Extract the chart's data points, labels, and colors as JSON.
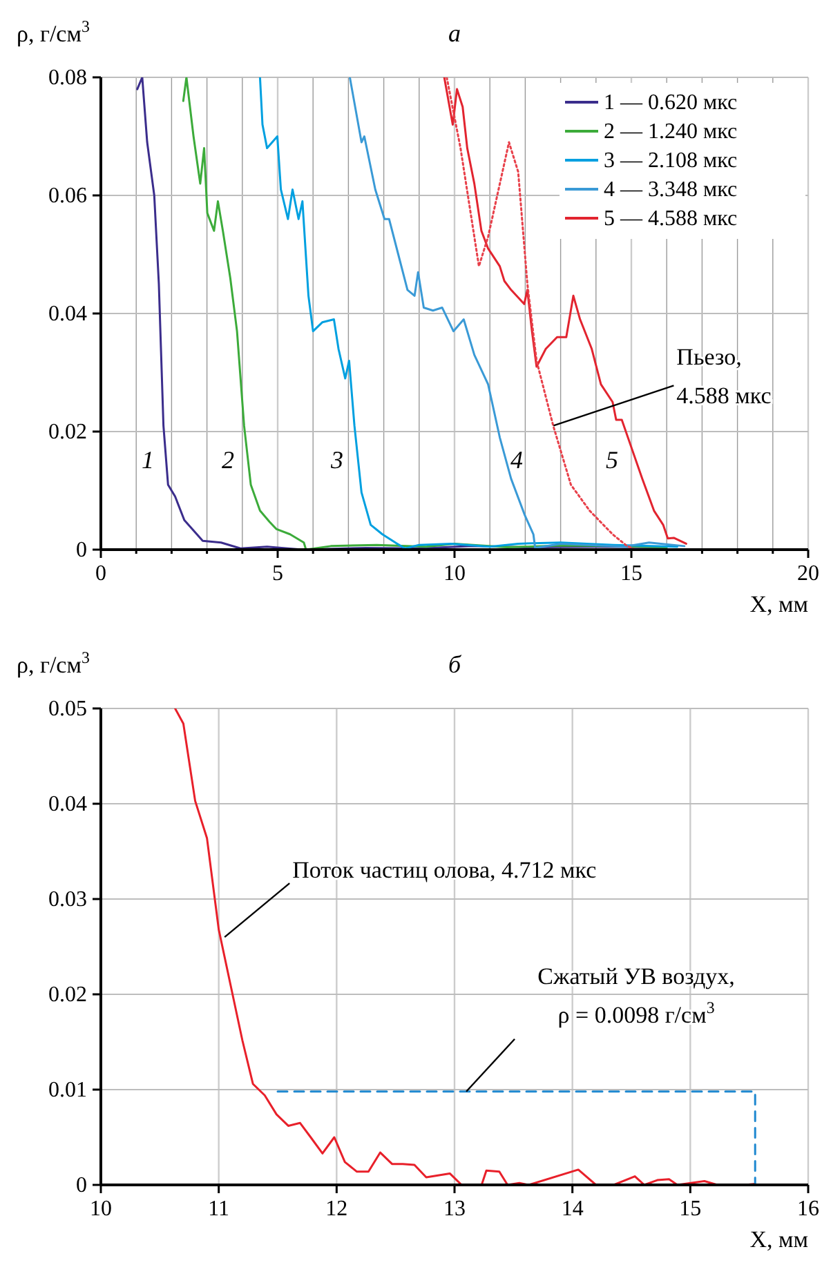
{
  "chart_data": [
    {
      "type": "line",
      "title": "а",
      "xlabel": "X, мм",
      "ylabel": "ρ, г/см$^{3}$",
      "xlim": [
        0,
        20
      ],
      "ylim": [
        0,
        0.08
      ],
      "xticks": [
        0,
        {
          "value": 1,
          "label": null
        },
        {
          "value": 2,
          "label": null
        },
        {
          "value": 3,
          "label": null
        },
        {
          "value": 4,
          "label": null
        },
        5,
        {
          "value": 6,
          "label": null
        },
        {
          "value": 7,
          "label": null
        },
        {
          "value": 8,
          "label": null
        },
        {
          "value": 9,
          "label": null
        },
        10,
        {
          "value": 11,
          "label": null
        },
        {
          "value": 12,
          "label": null
        },
        {
          "value": 13,
          "label": null
        },
        {
          "value": 14,
          "label": null
        },
        15,
        {
          "value": 16,
          "label": null
        },
        {
          "value": 17,
          "label": null
        },
        {
          "value": 18,
          "label": null
        },
        {
          "value": 19,
          "label": null
        },
        20
      ],
      "yticks": [
        0,
        0.02,
        0.04,
        0.06,
        0.08
      ],
      "grid": true,
      "legend": "top right",
      "series": [
        {
          "name": "1 — 0.620 мкс",
          "color": "#3b2d8c",
          "x": [
            1.03,
            1.17,
            1.31,
            1.51,
            1.64,
            1.77,
            1.9,
            2.1,
            2.36,
            2.88,
            3.4,
            3.95,
            4.7,
            5.7,
            7.5,
            9,
            10.5,
            12,
            14,
            16
          ],
          "values": [
            0.078,
            0.08,
            0.069,
            0.06,
            0.045,
            0.021,
            0.011,
            0.009,
            0.005,
            0.0015,
            0.0012,
            0.0002,
            0.0005,
            0,
            0.0003,
            0.0002,
            0.0006,
            0.0004,
            0.0005,
            0.0004
          ]
        },
        {
          "name": "2 — 1.240 мкс",
          "color": "#3cab3a",
          "x": [
            2.33,
            2.42,
            2.62,
            2.81,
            2.92,
            3.01,
            3.2,
            3.31,
            3.45,
            3.66,
            3.85,
            4.05,
            4.24,
            4.5,
            4.77,
            4.96,
            5.35,
            5.74,
            5.8,
            6.5,
            7.8,
            9.2,
            10,
            11.5,
            13,
            14.5,
            16
          ],
          "values": [
            0.076,
            0.08,
            0.07,
            0.062,
            0.068,
            0.057,
            0.054,
            0.059,
            0.054,
            0.046,
            0.037,
            0.021,
            0.011,
            0.0066,
            0.0047,
            0.0035,
            0.0026,
            0.0012,
            0,
            0.0006,
            0.0008,
            0.0005,
            0.001,
            0.0004,
            0.0007,
            0.0006,
            0.0004
          ]
        },
        {
          "name": "3 — 2.108 мкс",
          "color": "#00a0e0",
          "x": [
            4.5,
            4.57,
            4.7,
            4.99,
            5.09,
            5.29,
            5.42,
            5.59,
            5.7,
            5.87,
            6,
            6.26,
            6.59,
            6.72,
            6.91,
            7.02,
            7.17,
            7.37,
            7.63,
            7.96,
            8.35,
            8.6,
            9,
            9.9,
            11,
            11.8,
            13,
            14.5,
            16.3
          ],
          "values": [
            0.08,
            0.072,
            0.068,
            0.07,
            0.061,
            0.056,
            0.061,
            0.056,
            0.059,
            0.043,
            0.037,
            0.0385,
            0.039,
            0.034,
            0.029,
            0.032,
            0.021,
            0.0097,
            0.0042,
            0.0026,
            0.0011,
            0.0002,
            0.0008,
            0.001,
            0.0005,
            0.001,
            0.0012,
            0.0008,
            0.0005
          ]
        },
        {
          "name": "4 — 3.348 мкс",
          "color": "#3a9ad6",
          "x": [
            7.04,
            7.37,
            7.45,
            7.76,
            8.02,
            8.15,
            8.41,
            8.67,
            8.87,
            8.97,
            9.13,
            9.39,
            9.65,
            9.97,
            10.26,
            10.56,
            10.95,
            11.28,
            11.6,
            11.99,
            12.23,
            12.28,
            13,
            13.8,
            14.8,
            15.5,
            16.5
          ],
          "values": [
            0.08,
            0.069,
            0.07,
            0.061,
            0.056,
            0.056,
            0.05,
            0.044,
            0.043,
            0.047,
            0.041,
            0.0405,
            0.041,
            0.037,
            0.039,
            0.033,
            0.028,
            0.019,
            0.012,
            0.0058,
            0.0026,
            0.0003,
            0.001,
            0.0008,
            0.0005,
            0.0012,
            0.0006
          ]
        },
        {
          "name": "5 — 4.588 мкс",
          "color": "#e2242f",
          "x": [
            9.71,
            9.95,
            10.07,
            10.23,
            10.36,
            10.56,
            10.76,
            10.95,
            11.28,
            11.41,
            11.6,
            11.97,
            12.06,
            12.19,
            12.32,
            12.58,
            12.9,
            13.16,
            13.36,
            13.55,
            13.88,
            14.14,
            14.47,
            14.57,
            14.73,
            14.99,
            15.31,
            15.64,
            15.9,
            16.03,
            16.2,
            16.55
          ],
          "values": [
            0.08,
            0.072,
            0.078,
            0.075,
            0.068,
            0.062,
            0.054,
            0.051,
            0.048,
            0.0455,
            0.044,
            0.0416,
            0.044,
            0.037,
            0.031,
            0.034,
            0.036,
            0.036,
            0.043,
            0.039,
            0.034,
            0.028,
            0.025,
            0.022,
            0.022,
            0.0175,
            0.012,
            0.0066,
            0.0042,
            0.0019,
            0.002,
            0.001
          ]
        },
        {
          "color": "#e8404a",
          "line_style": "dotted",
          "x": [
            9.78,
            10.17,
            10.69,
            10.95,
            11.54,
            11.8,
            12.06,
            12.32,
            12.79,
            13.29,
            13.82,
            14.47,
            14.86,
            15.1,
            16,
            20
          ],
          "values": [
            0.08,
            0.068,
            0.048,
            0.053,
            0.069,
            0.064,
            0.045,
            0.032,
            0.021,
            0.011,
            0.0066,
            0.0026,
            0.0007,
            0,
            0,
            0
          ]
        }
      ],
      "annotations": [
        "1",
        "2",
        "3",
        "4",
        "5",
        {
          "text": "Пьезо,\n4.588 мкс",
          "x": 12.8,
          "y": 0.021
        }
      ]
    },
    {
      "type": "line",
      "title": "б",
      "xlabel": "X, мм",
      "ylabel": "ρ, г/см$^{3}$",
      "xlim": [
        10,
        16
      ],
      "ylim": [
        0,
        0.05
      ],
      "xticks": [
        10,
        11,
        12,
        13,
        14,
        15,
        16
      ],
      "yticks": [
        0,
        0.01,
        0.02,
        0.03,
        0.04,
        0.05
      ],
      "grid": true,
      "series": [
        {
          "color": "#e8202a",
          "x": [
            10.63,
            10.7,
            10.8,
            10.9,
            11,
            11.1,
            11.2,
            11.29,
            11.39,
            11.49,
            11.59,
            11.69,
            11.78,
            11.88,
            11.98,
            12.07,
            12.17,
            12.27,
            12.37,
            12.47,
            12.56,
            12.66,
            12.76,
            12.86,
            12.96,
            13.06,
            13.23,
            13.27,
            13.38,
            13.45,
            13.55,
            13.63,
            14.05,
            14.2,
            14.35,
            14.53,
            14.61,
            14.72,
            14.82,
            14.89,
            15.12,
            15.23,
            15.46,
            15.54
          ],
          "values": [
            0.05,
            0.0484,
            0.0403,
            0.0364,
            0.0268,
            0.021,
            0.0152,
            0.0106,
            0.0094,
            0.0074,
            0.0062,
            0.0065,
            0.005,
            0.0033,
            0.005,
            0.0024,
            0.0014,
            0.0014,
            0.0034,
            0.0022,
            0.0022,
            0.0021,
            0.0008,
            0.001,
            0.0012,
            0,
            0,
            0.0015,
            0.0014,
            0,
            0.0002,
            0,
            0.0016,
            0,
            0,
            0.0009,
            0,
            0.0005,
            0.0006,
            0,
            0.0004,
            0,
            0,
            0.0001
          ]
        },
        {
          "color": "#1e88d0",
          "line_style": "dashed",
          "x": [
            11.5,
            15.55,
            15.55
          ],
          "values": [
            0.0098,
            0.0098,
            0
          ]
        }
      ],
      "annotations": [
        {
          "text": "Поток частиц олова, 4.712 мкс",
          "x": 11.05,
          "y": 0.026
        },
        {
          "text": "Сжатый УВ воздух,\nρ = 0.0098 г/см$^{3}$",
          "x": 13.1,
          "y": 0.0098
        }
      ]
    }
  ]
}
